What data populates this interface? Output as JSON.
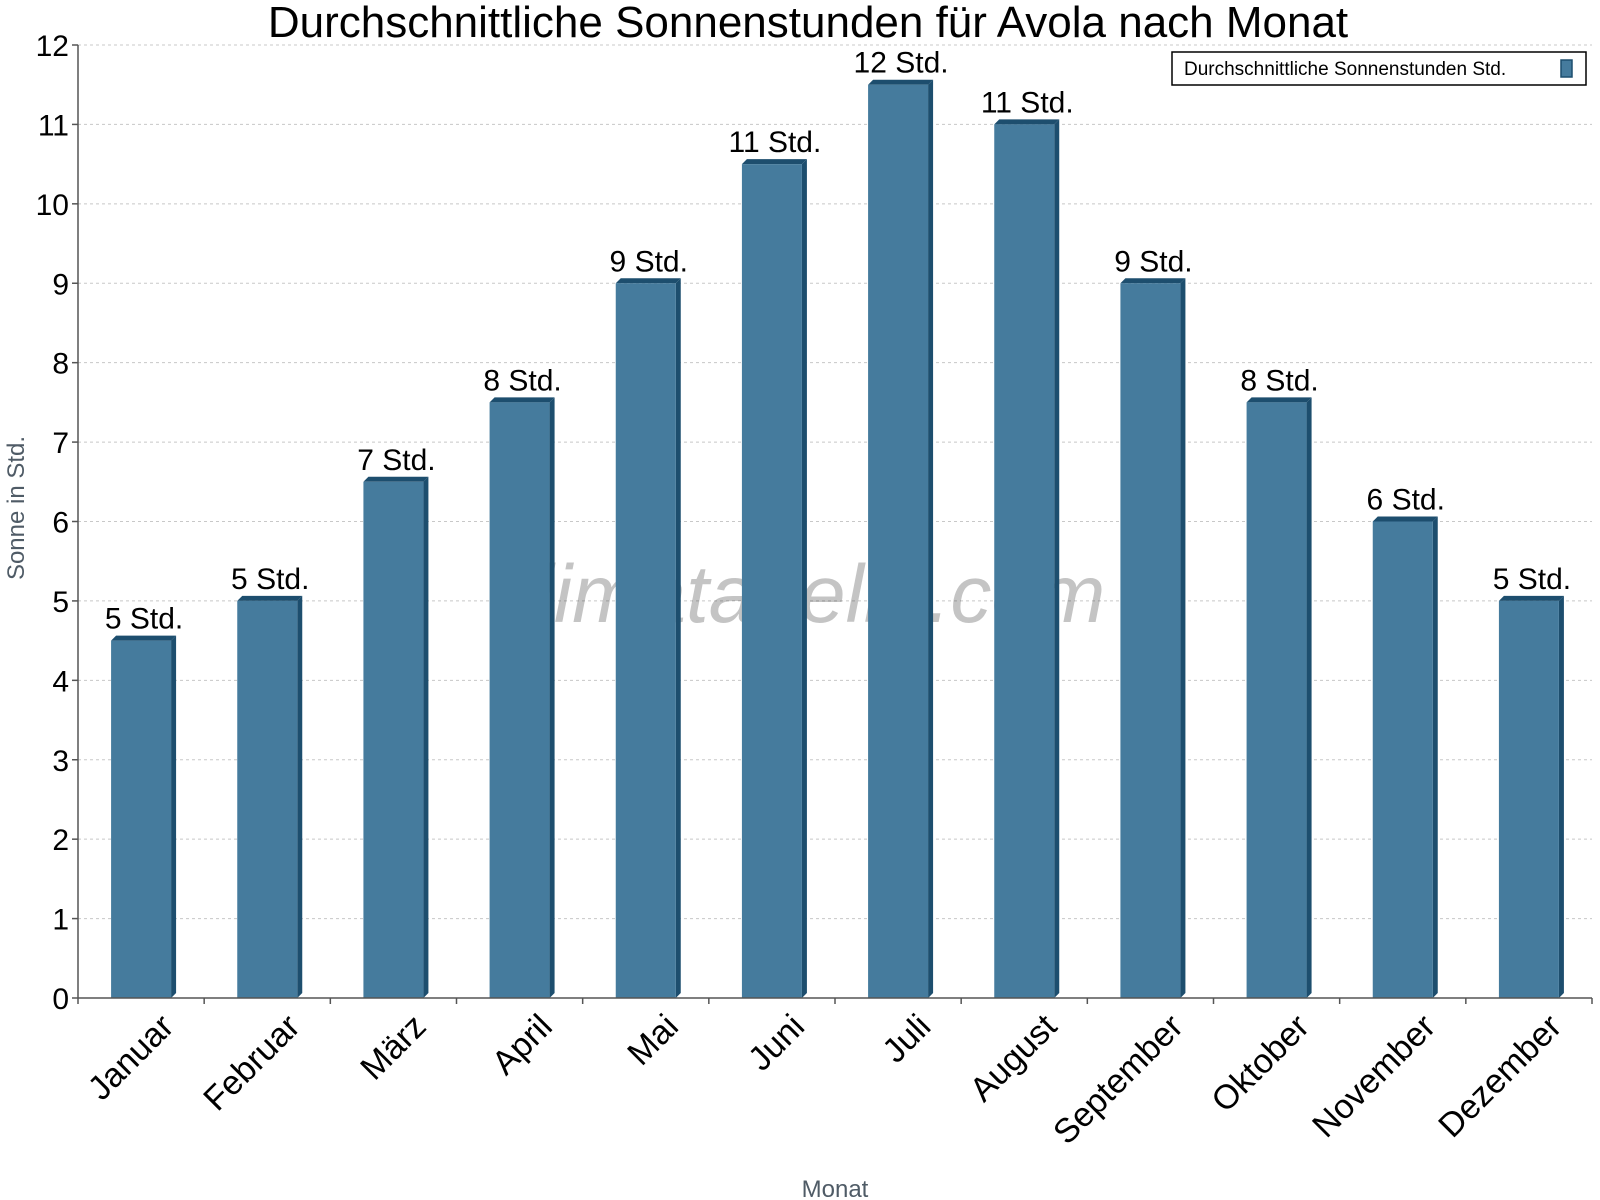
{
  "watermark": "klimatabelle.com",
  "colors": {
    "bar_face": "#457b9d",
    "bar_side": "#1d4e6e",
    "grid": "#c8c8c8",
    "axis": "#555555"
  },
  "chart_data": {
    "type": "bar",
    "title": "Durchschnittliche Sonnenstunden für Avola nach Monat",
    "xlabel": "Monat",
    "ylabel": "Sonne in Std.",
    "ylim": [
      0,
      12
    ],
    "yticks": [
      0,
      1,
      2,
      3,
      4,
      5,
      6,
      7,
      8,
      9,
      10,
      11,
      12
    ],
    "grid": true,
    "legend_position": "top-right",
    "categories": [
      "Januar",
      "Februar",
      "März",
      "April",
      "Mai",
      "Juni",
      "Juli",
      "August",
      "September",
      "Oktober",
      "November",
      "Dezember"
    ],
    "series": [
      {
        "name": "Durchschnittliche Sonnenstunden Std.",
        "values": [
          4.5,
          5,
          6.5,
          7.5,
          9,
          10.5,
          11.5,
          11,
          9,
          7.5,
          6,
          5
        ],
        "labels": [
          "5 Std.",
          "5 Std.",
          "7 Std.",
          "8 Std.",
          "9 Std.",
          "11 Std.",
          "12 Std.",
          "11 Std.",
          "9 Std.",
          "8 Std.",
          "6 Std.",
          "5 Std."
        ]
      }
    ]
  }
}
